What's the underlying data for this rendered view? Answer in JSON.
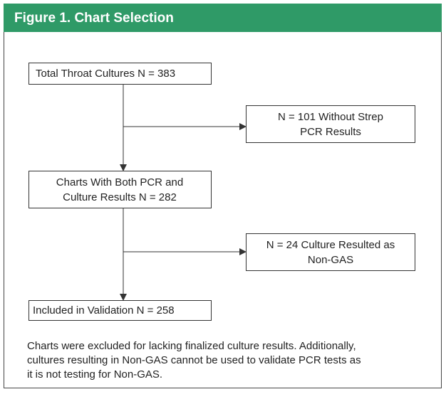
{
  "header": {
    "title": "Figure 1. Chart Selection"
  },
  "nodes": [
    {
      "lines": [
        "Total Throat Cultures N = 383"
      ]
    },
    {
      "lines": [
        "N = 101 Without Strep",
        "PCR Results"
      ]
    },
    {
      "lines": [
        "Charts With Both PCR and",
        "Culture Results N = 282"
      ]
    },
    {
      "lines": [
        "N = 24 Culture Resulted as",
        "Non-GAS"
      ]
    },
    {
      "lines": [
        "Included in Validation N = 258"
      ]
    }
  ],
  "note": {
    "lines": [
      "Charts were excluded for lacking finalized culture results. Additionally,",
      "cultures resulting in Non-GAS cannot be used to validate PCR tests as",
      "it is not testing for Non-GAS."
    ]
  }
}
